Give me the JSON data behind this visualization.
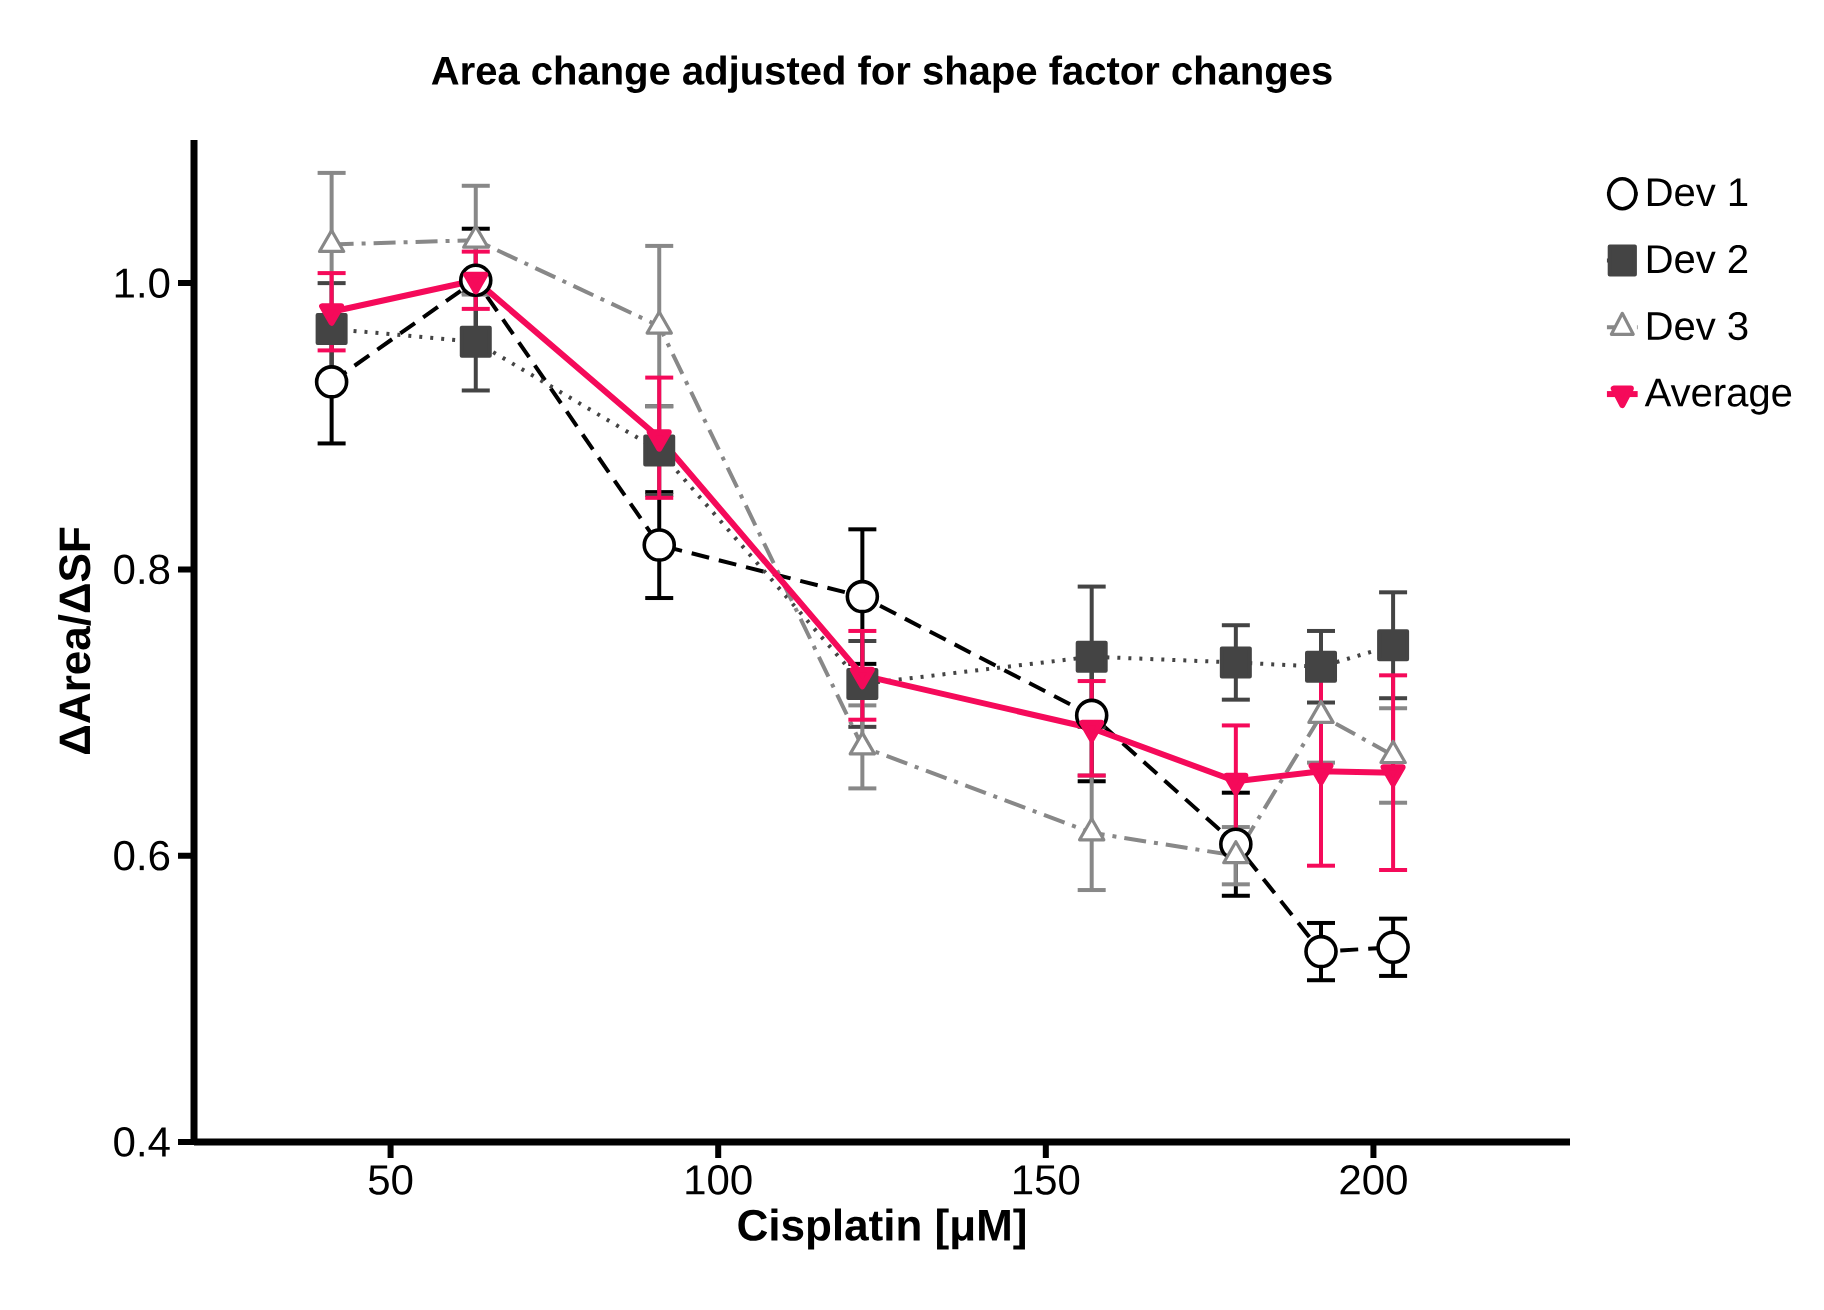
{
  "chart_data": {
    "type": "line",
    "title": "Area change adjusted for shape factor changes",
    "xlabel": "Cisplatin [μM]",
    "ylabel": "ΔArea/ΔSF",
    "x": [
      41,
      63,
      91,
      122,
      157,
      179,
      192,
      203
    ],
    "xlim": [
      20,
      230
    ],
    "xticks": [
      50,
      100,
      150,
      200
    ],
    "ylim": [
      0.4,
      1.1
    ],
    "yticks": [
      {
        "value": 0.4,
        "label": "0.4"
      },
      {
        "value": 0.6,
        "label": "0.6"
      },
      {
        "value": 0.8,
        "label": "0.8"
      },
      {
        "value": 1.0,
        "label": "1.0"
      }
    ],
    "grid": false,
    "legend": "right",
    "series": [
      {
        "name": "Dev 1",
        "color": "#000000",
        "marker": "circle",
        "line_style": "dashed",
        "values": [
          0.931,
          1.002,
          0.817,
          0.781,
          0.698,
          0.608,
          0.533,
          0.536
        ],
        "errors": [
          0.043,
          0.036,
          0.037,
          0.047,
          0.046,
          0.036,
          0.02,
          0.02
        ]
      },
      {
        "name": "Dev 2",
        "color": "#444444",
        "marker": "square",
        "line_style": "dotted",
        "values": [
          0.968,
          0.959,
          0.883,
          0.72,
          0.739,
          0.735,
          0.732,
          0.747
        ],
        "errors": [
          0.032,
          0.034,
          0.031,
          0.03,
          0.049,
          0.026,
          0.025,
          0.037
        ]
      },
      {
        "name": "Dev 3",
        "color": "#888888",
        "marker": "triangle",
        "line_style": "dashdot",
        "values": [
          1.027,
          1.03,
          0.97,
          0.676,
          0.616,
          0.6,
          0.698,
          0.67
        ],
        "errors": [
          0.05,
          0.038,
          0.056,
          0.029,
          0.04,
          0.02,
          0.033,
          0.033
        ]
      },
      {
        "name": "Average",
        "color": "#f50a5a",
        "marker": "triangle_down",
        "line_style": "solid",
        "values": [
          0.98,
          1.002,
          0.892,
          0.726,
          0.689,
          0.652,
          0.659,
          0.658
        ],
        "errors": [
          0.027,
          0.02,
          0.042,
          0.031,
          0.033,
          0.039,
          0.066,
          0.068
        ]
      }
    ]
  }
}
